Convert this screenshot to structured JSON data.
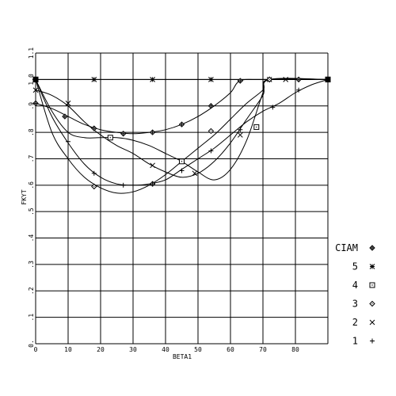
{
  "chart_data": {
    "type": "line",
    "xlabel": "BETA1",
    "ylabel": "FKYT",
    "xlim": [
      0,
      90
    ],
    "ylim": [
      0,
      1.1
    ],
    "x_ticks": [
      "0",
      "10",
      "20",
      "30",
      "40",
      "50",
      "60",
      "70",
      "80"
    ],
    "y_ticks": [
      "0.",
      ".1",
      ".2",
      ".3",
      ".4",
      ".5",
      ".6",
      ".7",
      ".8",
      ".9",
      "1.0",
      "1.1"
    ],
    "grid": true,
    "legend_position": "right",
    "series": [
      {
        "name": "CIAM",
        "marker": "diamond-plus",
        "curve": [
          [
            0,
            0.91
          ],
          [
            5,
            0.89
          ],
          [
            10,
            0.86
          ],
          [
            15,
            0.83
          ],
          [
            20,
            0.81
          ],
          [
            25,
            0.8
          ],
          [
            30,
            0.795
          ],
          [
            35,
            0.8
          ],
          [
            40,
            0.81
          ],
          [
            45,
            0.83
          ],
          [
            50,
            0.86
          ],
          [
            55,
            0.9
          ],
          [
            60,
            0.95
          ],
          [
            63,
            0.995
          ],
          [
            70,
            1.0
          ],
          [
            90,
            1.0
          ]
        ],
        "markers": [
          [
            0,
            0.91
          ],
          [
            9,
            0.86
          ],
          [
            18,
            0.815
          ],
          [
            27,
            0.795
          ],
          [
            36,
            0.8
          ],
          [
            45,
            0.83
          ],
          [
            54,
            0.9
          ],
          [
            63,
            0.995
          ],
          [
            72,
            1.0
          ],
          [
            81,
            1.0
          ]
        ]
      },
      {
        "name": "5",
        "marker": "asterisk",
        "curve": [
          [
            0,
            1.0
          ],
          [
            90,
            1.0
          ]
        ],
        "markers": [
          [
            0,
            1.0
          ],
          [
            18,
            1.0
          ],
          [
            36,
            1.0
          ],
          [
            54,
            1.0
          ],
          [
            72,
            1.0
          ]
        ]
      },
      {
        "name": "4",
        "marker": "square-dot",
        "curve": [
          [
            0,
            1.0
          ],
          [
            5,
            0.88
          ],
          [
            10,
            0.8
          ],
          [
            15,
            0.78
          ],
          [
            20,
            0.78
          ],
          [
            25,
            0.78
          ],
          [
            30,
            0.77
          ],
          [
            35,
            0.75
          ],
          [
            40,
            0.72
          ],
          [
            45,
            0.69
          ],
          [
            50,
            0.65
          ],
          [
            55,
            0.62
          ],
          [
            60,
            0.66
          ],
          [
            65,
            0.77
          ],
          [
            70,
            0.95
          ],
          [
            72,
            1.0
          ],
          [
            90,
            1.0
          ]
        ],
        "markers": [
          [
            0,
            1.0
          ],
          [
            23,
            0.78
          ],
          [
            45,
            0.69
          ],
          [
            68,
            0.82
          ],
          [
            90,
            1.0
          ]
        ]
      },
      {
        "name": "3",
        "marker": "diamond",
        "curve": [
          [
            0,
            1.0
          ],
          [
            5,
            0.8
          ],
          [
            10,
            0.7
          ],
          [
            15,
            0.63
          ],
          [
            20,
            0.59
          ],
          [
            25,
            0.57
          ],
          [
            30,
            0.575
          ],
          [
            35,
            0.6
          ],
          [
            40,
            0.64
          ],
          [
            45,
            0.69
          ],
          [
            50,
            0.74
          ],
          [
            55,
            0.79
          ],
          [
            60,
            0.85
          ],
          [
            65,
            0.91
          ],
          [
            70,
            0.96
          ],
          [
            72,
            1.0
          ],
          [
            90,
            1.0
          ]
        ],
        "markers": [
          [
            0,
            1.0
          ],
          [
            18,
            0.595
          ],
          [
            36,
            0.605
          ],
          [
            54,
            0.805
          ],
          [
            72,
            1.0
          ]
        ]
      },
      {
        "name": "2",
        "marker": "x",
        "curve": [
          [
            0,
            0.96
          ],
          [
            5,
            0.94
          ],
          [
            10,
            0.9
          ],
          [
            15,
            0.84
          ],
          [
            20,
            0.79
          ],
          [
            25,
            0.75
          ],
          [
            30,
            0.72
          ],
          [
            35,
            0.68
          ],
          [
            40,
            0.65
          ],
          [
            45,
            0.63
          ],
          [
            50,
            0.645
          ],
          [
            55,
            0.69
          ],
          [
            60,
            0.76
          ],
          [
            65,
            0.85
          ],
          [
            70,
            0.94
          ],
          [
            72,
            1.0
          ],
          [
            90,
            1.0
          ]
        ],
        "markers": [
          [
            0,
            0.96
          ],
          [
            10,
            0.91
          ],
          [
            36,
            0.675
          ],
          [
            49,
            0.645
          ],
          [
            63,
            0.79
          ],
          [
            77,
            1.0
          ]
        ]
      },
      {
        "name": "1",
        "marker": "plus",
        "curve": [
          [
            0,
            1.0
          ],
          [
            5,
            0.86
          ],
          [
            10,
            0.76
          ],
          [
            15,
            0.68
          ],
          [
            20,
            0.63
          ],
          [
            25,
            0.605
          ],
          [
            30,
            0.6
          ],
          [
            35,
            0.605
          ],
          [
            40,
            0.62
          ],
          [
            45,
            0.66
          ],
          [
            50,
            0.7
          ],
          [
            55,
            0.74
          ],
          [
            60,
            0.79
          ],
          [
            65,
            0.84
          ],
          [
            70,
            0.88
          ],
          [
            75,
            0.91
          ],
          [
            80,
            0.95
          ],
          [
            85,
            0.98
          ],
          [
            90,
            1.0
          ]
        ],
        "markers": [
          [
            0,
            1.0
          ],
          [
            10,
            0.765
          ],
          [
            18,
            0.645
          ],
          [
            27,
            0.6
          ],
          [
            36,
            0.605
          ],
          [
            45,
            0.655
          ],
          [
            54,
            0.73
          ],
          [
            63,
            0.81
          ],
          [
            73,
            0.895
          ],
          [
            81,
            0.96
          ]
        ]
      }
    ]
  }
}
